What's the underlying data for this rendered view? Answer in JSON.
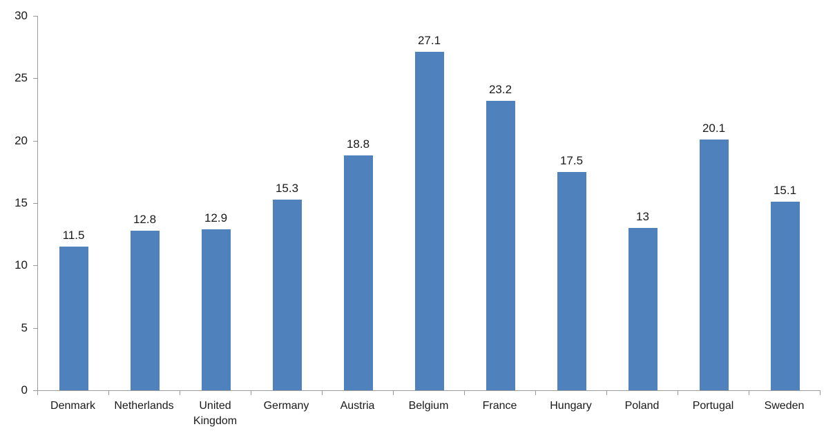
{
  "chart_data": {
    "type": "bar",
    "title": "",
    "xlabel": "",
    "ylabel": "",
    "categories": [
      "Denmark",
      "Netherlands",
      "United Kingdom",
      "Germany",
      "Austria",
      "Belgium",
      "France",
      "Hungary",
      "Poland",
      "Portugal",
      "Sweden"
    ],
    "values": [
      11.5,
      12.8,
      12.9,
      15.3,
      18.8,
      27.1,
      23.2,
      17.5,
      13,
      20.1,
      15.1
    ],
    "data_labels": [
      "11.5",
      "12.8",
      "12.9",
      "15.3",
      "18.8",
      "27.1",
      "23.2",
      "17.5",
      "13",
      "20.1",
      "15.1"
    ],
    "ylim": [
      0,
      30
    ],
    "ytick_interval": 5,
    "ytick_labels": [
      "0",
      "5",
      "10",
      "15",
      "20",
      "25",
      "30"
    ],
    "grid": false,
    "legend_position": "none",
    "bar_color": "#4F81BD",
    "axis_color": "#9a9a9a",
    "text_color": "#1a1a1a"
  }
}
